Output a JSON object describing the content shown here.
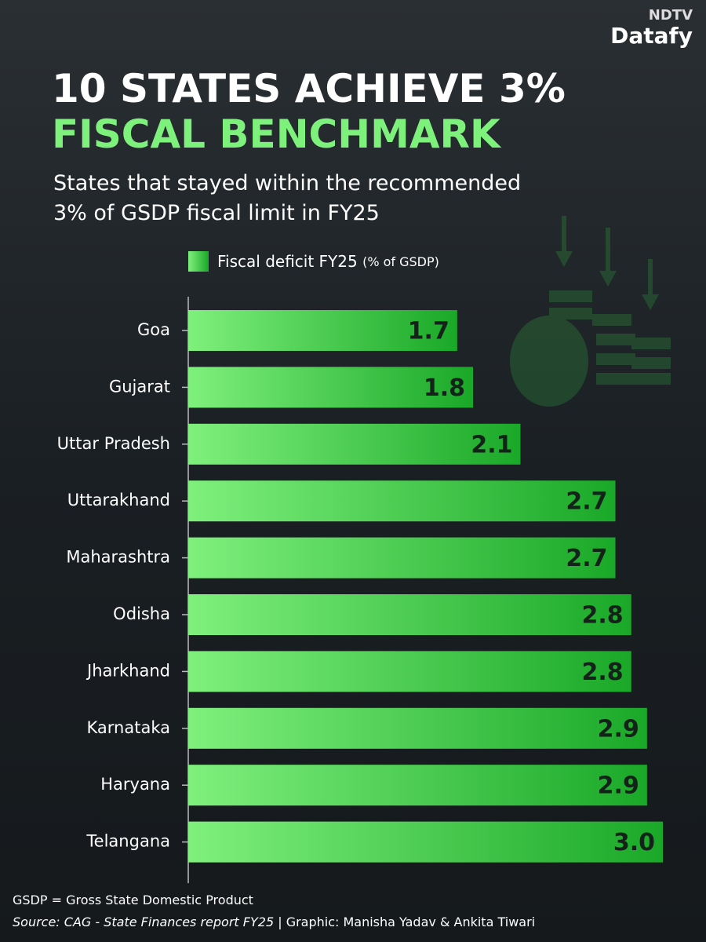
{
  "brand": {
    "top": "NDTV",
    "name": "Datafy"
  },
  "chart_data": {
    "type": "bar",
    "orientation": "horizontal",
    "title": [
      "10 STATES ACHIEVE 3%",
      "FISCAL BENCHMARK"
    ],
    "subtitle": [
      "States that stayed within the recommended",
      "3% of GSDP fiscal limit in FY25"
    ],
    "categories": [
      "Goa",
      "Gujarat",
      "Uttar Pradesh",
      "Uttarakhand",
      "Maharashtra",
      "Odisha",
      "Jharkhand",
      "Karnataka",
      "Haryana",
      "Telangana"
    ],
    "series": [
      {
        "name": "Fiscal deficit FY25",
        "unit": "(% of GSDP)",
        "color": "#2fbf3a",
        "values": [
          1.7,
          1.8,
          2.1,
          2.7,
          2.7,
          2.8,
          2.8,
          2.9,
          2.9,
          3.0
        ],
        "value_labels": [
          "1.7",
          "1.8",
          "2.1",
          "2.7",
          "2.7",
          "2.8",
          "2.8",
          "2.9",
          "2.9",
          "3.0"
        ]
      }
    ],
    "xlim": [
      0,
      3
    ]
  },
  "footer": {
    "note": "GSDP = Gross State Domestic Product",
    "source": "Source: CAG - State Finances report FY25",
    "credit": " | Graphic: Manisha Yadav & Ankita Tiwari"
  }
}
